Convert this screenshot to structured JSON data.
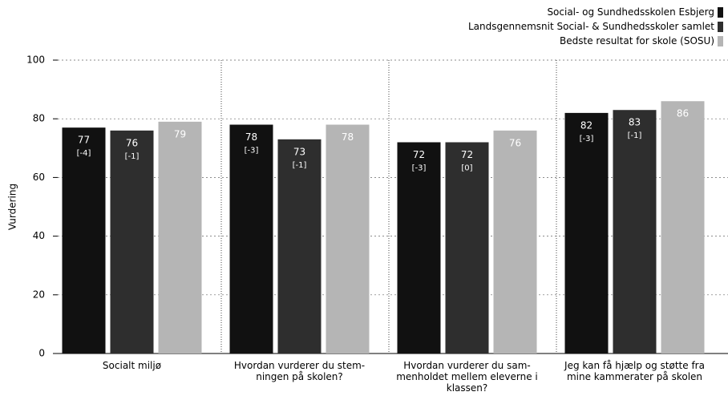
{
  "chart_data": {
    "type": "bar",
    "y_label": "Vurdering",
    "categories": [
      "Socialt miljø",
      "Hvordan vurderer du stem-\nningen på skolen?",
      "Hvordan vurderer du sam-\nmenholdet mellem eleverne i\nklassen?",
      "Jeg kan få hjælp og støtte fra\nmine kammerater på skolen"
    ],
    "series": [
      {
        "name": "Social- og Sundhedsskolen Esbjerg",
        "color": "#111111",
        "values": [
          77,
          78,
          72,
          82
        ],
        "diff_labels": [
          "[-4]",
          "[-3]",
          "[-3]",
          "[-3]"
        ]
      },
      {
        "name": "Landsgennemsnit Social- & Sundhedsskoler samlet",
        "color": "#2e2e2e",
        "values": [
          76,
          73,
          72,
          83
        ],
        "diff_labels": [
          "[-1]",
          "[-1]",
          "[0]",
          "[-1]"
        ]
      },
      {
        "name": "Bedste resultat for skole (SOSU)",
        "color": "#b5b5b5",
        "values": [
          79,
          78,
          76,
          86
        ]
      }
    ],
    "ylim": [
      0,
      100
    ],
    "yticks": [
      0,
      20,
      40,
      60,
      80,
      100
    ],
    "grid": true,
    "legend": "top-right"
  }
}
